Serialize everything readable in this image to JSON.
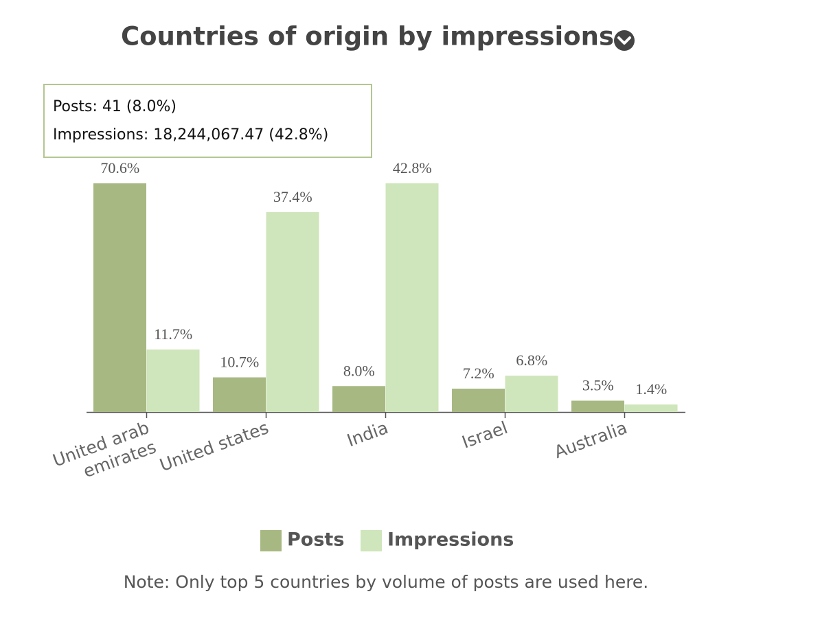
{
  "chart_data": {
    "type": "bar",
    "title": "Countries of origin by impressions",
    "categories": [
      "United arab emirates",
      "United states",
      "India",
      "Israel",
      "Australia"
    ],
    "series": [
      {
        "name": "Posts",
        "color": "#a7b882",
        "values": [
          70.6,
          10.7,
          8.0,
          7.2,
          3.5
        ],
        "value_labels": [
          "70.6%",
          "10.7%",
          "8.0%",
          "7.2%",
          "3.5%"
        ]
      },
      {
        "name": "Impressions",
        "color": "#cfe5bb",
        "values": [
          11.7,
          37.4,
          42.8,
          6.8,
          1.4
        ],
        "value_labels": [
          "11.7%",
          "37.4%",
          "42.8%",
          "6.8%",
          "1.4%"
        ]
      }
    ],
    "tooltip": {
      "lines": [
        "Posts: 41 (8.0%)",
        "Impressions: 18,244,067.47 (42.8%)"
      ]
    },
    "note": "Note: Only top 5 countries by volume of posts are used here."
  }
}
